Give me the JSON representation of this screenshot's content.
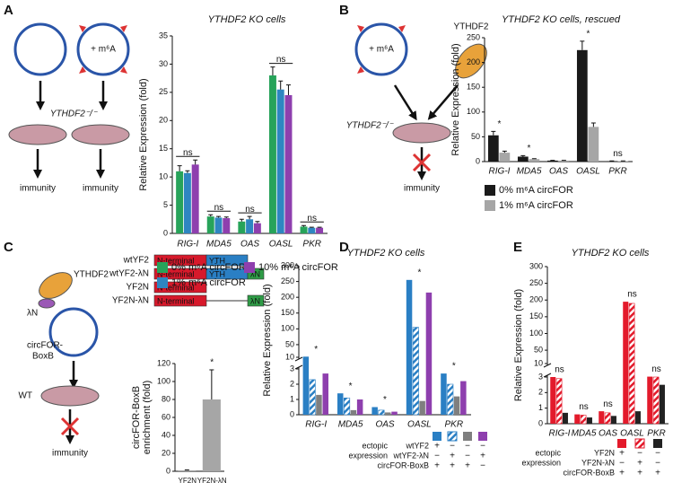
{
  "labels": {
    "panels": [
      "A",
      "B",
      "C",
      "D",
      "E"
    ],
    "A": {
      "m6a": "+ m⁶A",
      "ko": "YTHDF2⁻/⁻",
      "immunity": [
        "immunity",
        "immunity"
      ]
    },
    "B": {
      "m6a": "+ m⁶A",
      "protein": "YTHDF2",
      "ko": "YTHDF2⁻/⁻",
      "immunity": "immunity"
    },
    "C": {
      "protein": "YTHDF2",
      "tag": "λN",
      "circ": [
        "circFOR-",
        "BoxB"
      ],
      "wt": "WT",
      "immunity": "immunity",
      "constructs": [
        {
          "name": "wtYF2",
          "domains": [
            "N-terminal",
            "YTH"
          ]
        },
        {
          "name": "wtYF2-λN",
          "domains": [
            "N-terminal",
            "YTH",
            "λN"
          ]
        },
        {
          "name": "YF2N",
          "domains": [
            "N-terminal"
          ]
        },
        {
          "name": "YF2N-λN",
          "domains": [
            "N-terminal",
            "λN"
          ]
        }
      ]
    }
  },
  "chart_data": [
    {
      "type": "bar",
      "title": "YTHDF2 KO cells",
      "y_label": [
        "Relative Expression (fold)"
      ],
      "categories": [
        "RIG-I",
        "MDA5",
        "OAS",
        "OASL",
        "PKR"
      ],
      "ylim": [
        0,
        35
      ],
      "yticks": [
        0,
        5,
        10,
        15,
        20,
        25,
        30,
        35
      ],
      "series": [
        {
          "name": "0% m⁶A circFOR",
          "color": "#27a35a",
          "values": [
            11,
            3,
            2.1,
            28,
            1.2
          ],
          "errors": [
            1,
            0.3,
            0.4,
            1.5,
            0.2
          ]
        },
        {
          "name": "1% m⁶A circFOR",
          "color": "#2e86c1",
          "values": [
            10.7,
            2.8,
            2.5,
            25.5,
            1.0
          ],
          "errors": [
            0.4,
            0.2,
            0.5,
            1.5,
            0.1
          ]
        },
        {
          "name": "10% m⁶A circFOR",
          "color": "#8e3fae",
          "values": [
            12.2,
            2.7,
            1.8,
            24.5,
            1.0
          ],
          "errors": [
            0.8,
            0.2,
            0.3,
            1.8,
            0.1
          ]
        }
      ],
      "annotations": [
        "ns",
        "ns",
        "ns",
        "ns",
        "ns"
      ]
    },
    {
      "type": "bar",
      "title": "YTHDF2 KO cells, rescued",
      "y_label": [
        "Relative Expression (fold)"
      ],
      "categories": [
        "RIG-I",
        "MDA5",
        "OAS",
        "OASL",
        "PKR"
      ],
      "ylim": [
        0,
        250
      ],
      "yticks": [
        0,
        50,
        100,
        150,
        200,
        250
      ],
      "series": [
        {
          "name": "0% m⁶A circFOR",
          "color": "#1a1a1a",
          "values": [
            53,
            10,
            2,
            225,
            1
          ],
          "errors": [
            8,
            2,
            0.5,
            18,
            0.3
          ]
        },
        {
          "name": "1% m⁶A circFOR",
          "color": "#a6a6a6",
          "values": [
            18,
            5,
            2,
            70,
            1
          ],
          "errors": [
            3,
            1,
            0.5,
            8,
            0.3
          ]
        }
      ],
      "annotations": [
        "*",
        "*",
        null,
        "*",
        "ns"
      ]
    },
    {
      "type": "bar",
      "y_label": [
        "circFOR-BoxB",
        "enrichment (fold)"
      ],
      "categories": [
        "YF2N",
        "YF2N-λN"
      ],
      "color": "#a6a6a6",
      "values": [
        1,
        80
      ],
      "errors": [
        0.5,
        33
      ],
      "ylim": [
        0,
        120
      ],
      "yticks": [
        0,
        20,
        40,
        60,
        80,
        100,
        120
      ],
      "annotations": [
        null,
        "*"
      ]
    },
    {
      "type": "bar",
      "title": "YTHDF2 KO cells",
      "y_label": [
        "Relative Expression (fold)"
      ],
      "categories": [
        "RIG-I",
        "MDA5",
        "OAS",
        "OASL",
        "PKR"
      ],
      "ylim": [
        0,
        300
      ],
      "axis_break": [
        3,
        10
      ],
      "yticks": [
        0,
        1,
        2,
        3,
        10,
        50,
        100,
        150,
        200,
        250,
        300
      ],
      "series": [
        {
          "color": "#2a7fc4",
          "hatch": false,
          "values": [
            12,
            1.4,
            0.5,
            255,
            2.7
          ]
        },
        {
          "color": "#2a7fc4",
          "hatch": true,
          "values": [
            2.3,
            1.1,
            0.3,
            105,
            2.0
          ]
        },
        {
          "color": "#7f7f7f",
          "hatch": false,
          "values": [
            1.3,
            0.3,
            0.15,
            0.9,
            1.2
          ]
        },
        {
          "color": "#8e3fae",
          "hatch": false,
          "values": [
            2.7,
            1.0,
            0.2,
            215,
            2.2
          ]
        }
      ],
      "annotations": [
        "*",
        "*",
        "*",
        "*",
        "*"
      ],
      "expression_table": {
        "label": [
          "ectopic",
          "expression"
        ],
        "rows": [
          {
            "name": "wtYF2",
            "marks": [
              "+",
              "−",
              "−",
              "−"
            ]
          },
          {
            "name": "wtYF2-λN",
            "marks": [
              "−",
              "+",
              "−",
              "+"
            ]
          },
          {
            "name": "circFOR-BoxB",
            "marks": [
              "+",
              "+",
              "+",
              "−"
            ]
          }
        ]
      }
    },
    {
      "type": "bar",
      "title": "YTHDF2 KO cells",
      "y_label": [
        "Relative Expression (fold)"
      ],
      "categories": [
        "RIG-I",
        "MDA5",
        "OAS",
        "OASL",
        "PKR"
      ],
      "ylim": [
        0,
        300
      ],
      "axis_break": [
        3,
        10
      ],
      "yticks": [
        0,
        1,
        2,
        3,
        10,
        50,
        100,
        150,
        200,
        250,
        300
      ],
      "series": [
        {
          "color": "#e31a2b",
          "hatch": false,
          "values": [
            3.0,
            0.6,
            0.8,
            195,
            3.2
          ]
        },
        {
          "color": "#e31a2b",
          "hatch": true,
          "values": [
            2.9,
            0.55,
            0.7,
            190,
            3.0
          ]
        },
        {
          "color": "#222222",
          "hatch": false,
          "values": [
            0.7,
            0.4,
            0.5,
            0.8,
            2.5
          ]
        }
      ],
      "annotations": [
        "ns",
        "ns",
        "ns",
        "ns",
        "ns"
      ],
      "expression_table": {
        "label": [
          "ectopic",
          "expression"
        ],
        "rows": [
          {
            "name": "YF2N",
            "marks": [
              "+",
              "−",
              "−"
            ]
          },
          {
            "name": "YF2N-λN",
            "marks": [
              "−",
              "+",
              "−"
            ]
          },
          {
            "name": "circFOR-BoxB",
            "marks": [
              "+",
              "+",
              "+"
            ]
          }
        ]
      }
    }
  ]
}
